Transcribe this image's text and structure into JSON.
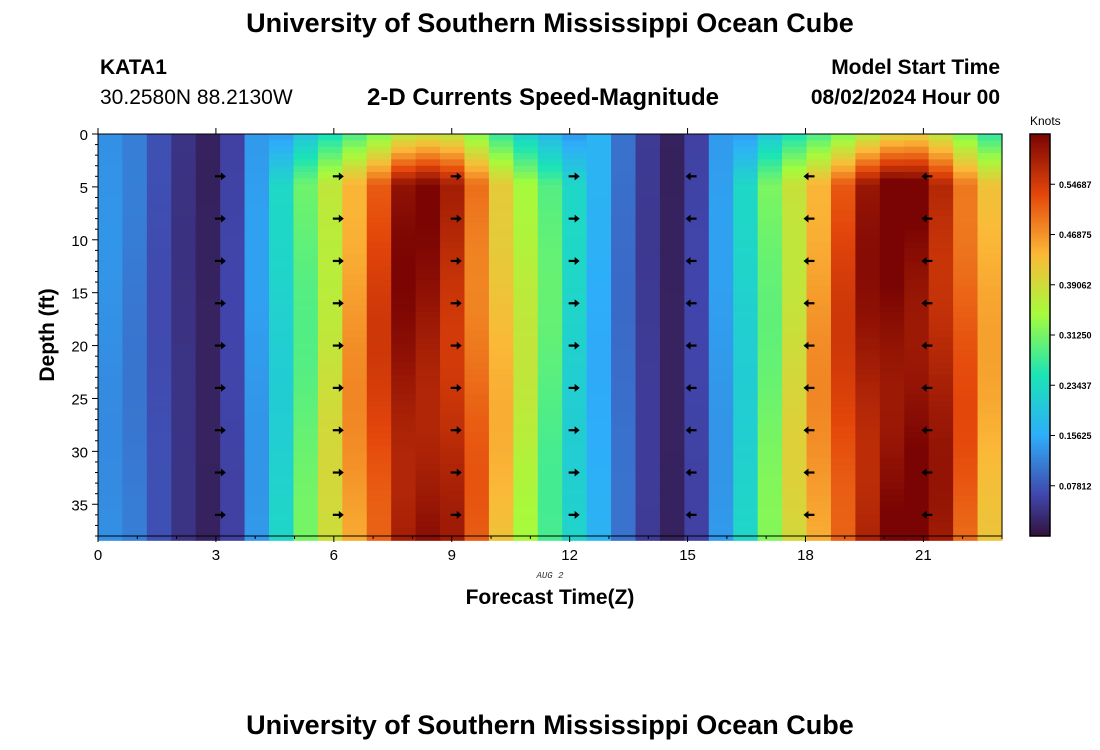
{
  "header": {
    "title": "University of Southern Mississippi Ocean Cube",
    "station": "KATA1",
    "coords": "30.2580N  88.2130W",
    "subtitle": "2-D Currents Speed-Magnitude",
    "model_label": "Model Start Time",
    "model_time": "08/02/2024 Hour 00"
  },
  "footer": {
    "title": "University of Southern Mississippi Ocean Cube"
  },
  "chart_data": {
    "type": "heatmap",
    "title": "2-D Currents Speed-Magnitude",
    "xlabel": "Forecast Time(Z)",
    "ylabel": "Depth (ft)",
    "date_label": "AUG 2",
    "xlim": [
      0,
      23
    ],
    "ylim": [
      0,
      38
    ],
    "x_ticks": [
      "0",
      "3",
      "6",
      "9",
      "12",
      "15",
      "18",
      "21"
    ],
    "y_ticks": [
      "0",
      "5",
      "10",
      "15",
      "20",
      "25",
      "30",
      "35"
    ],
    "colorbar": {
      "label": "Knots",
      "ticks": [
        "0.07812",
        "0.15625",
        "0.23437",
        "0.31250",
        "0.39062",
        "0.46875",
        "0.54687"
      ],
      "range": [
        0,
        0.625
      ]
    },
    "speed_by_hour_knots": [
      0.13,
      0.11,
      0.07,
      0.04,
      0.02,
      0.06,
      0.14,
      0.22,
      0.3,
      0.38,
      0.46,
      0.53,
      0.6,
      0.6,
      0.57,
      0.5,
      0.43,
      0.36,
      0.29,
      0.22,
      0.16,
      0.1,
      0.05,
      0.02,
      0.06,
      0.14,
      0.22,
      0.31,
      0.39,
      0.46,
      0.53,
      0.59,
      0.62,
      0.62,
      0.58,
      0.51,
      0.44
    ],
    "arrow_hours": [
      3,
      6,
      9,
      12,
      15,
      18,
      21
    ],
    "arrow_depths_ft": [
      4,
      8,
      12,
      16,
      20,
      24,
      28,
      32,
      36
    ],
    "arrow_directions": [
      "east",
      "east",
      "east",
      "east",
      "west",
      "west",
      "west"
    ]
  }
}
